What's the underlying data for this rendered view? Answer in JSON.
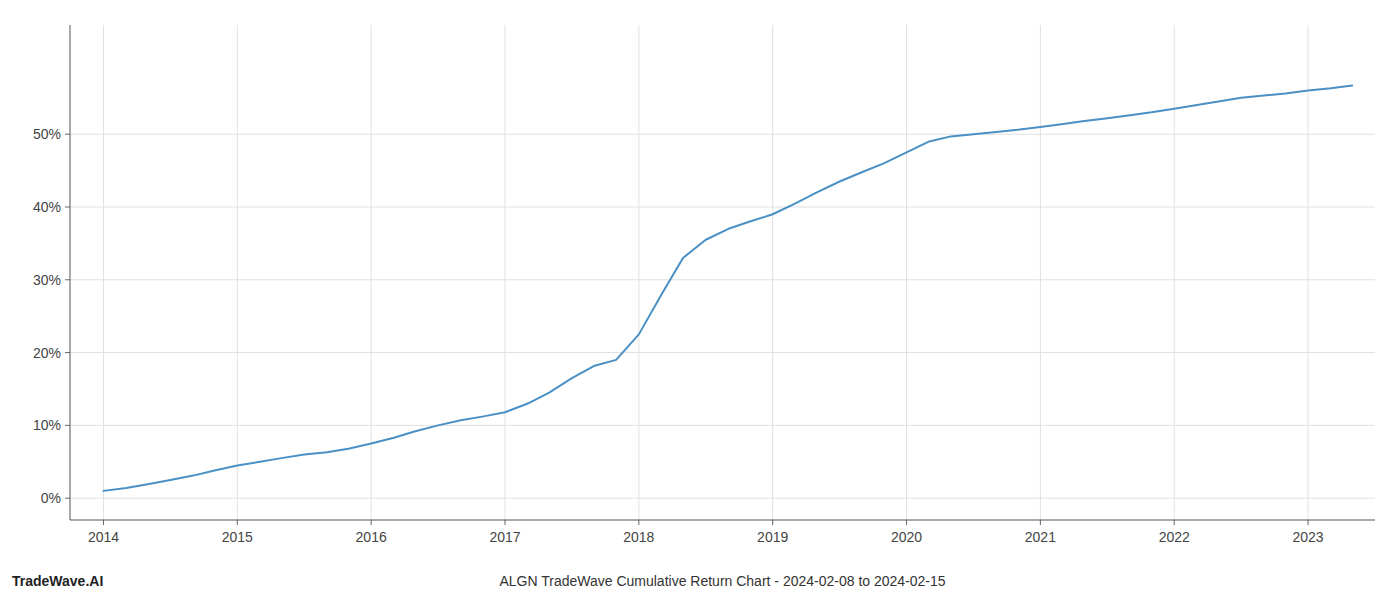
{
  "chart_data": {
    "type": "line",
    "title": "ALGN TradeWave Cumulative Return Chart - 2024-02-08 to 2024-02-15",
    "annotations": [
      "TradeWave.AI"
    ],
    "x": [
      2014.0,
      2014.17,
      2014.33,
      2014.5,
      2014.67,
      2014.83,
      2015.0,
      2015.17,
      2015.33,
      2015.5,
      2015.67,
      2015.83,
      2016.0,
      2016.17,
      2016.33,
      2016.5,
      2016.67,
      2016.83,
      2017.0,
      2017.17,
      2017.33,
      2017.5,
      2017.67,
      2017.83,
      2018.0,
      2018.17,
      2018.33,
      2018.5,
      2018.67,
      2018.83,
      2019.0,
      2019.17,
      2019.33,
      2019.5,
      2019.67,
      2019.83,
      2020.0,
      2020.17,
      2020.33,
      2020.5,
      2020.67,
      2020.83,
      2021.0,
      2021.17,
      2021.33,
      2021.5,
      2021.67,
      2021.83,
      2022.0,
      2022.17,
      2022.33,
      2022.5,
      2022.67,
      2022.83,
      2023.0,
      2023.17,
      2023.33
    ],
    "values": [
      1.0,
      1.4,
      1.9,
      2.5,
      3.1,
      3.8,
      4.5,
      5.0,
      5.5,
      6.0,
      6.3,
      6.8,
      7.5,
      8.3,
      9.2,
      10.0,
      10.7,
      11.2,
      11.8,
      13.0,
      14.5,
      16.5,
      18.2,
      19.0,
      22.5,
      28.0,
      33.0,
      35.5,
      37.0,
      38.0,
      39.0,
      40.5,
      42.0,
      43.5,
      44.8,
      46.0,
      47.5,
      49.0,
      49.7,
      50.0,
      50.3,
      50.6,
      51.0,
      51.4,
      51.8,
      52.2,
      52.6,
      53.0,
      53.5,
      54.0,
      54.5,
      55.0,
      55.3,
      55.6,
      56.0,
      56.3,
      56.7
    ],
    "color": "#4a90c4",
    "xlim": [
      2013.75,
      2023.5
    ],
    "ylim": [
      -3,
      65
    ],
    "xticks": [
      2014,
      2015,
      2016,
      2017,
      2018,
      2019,
      2020,
      2021,
      2022,
      2023
    ],
    "yticks": [
      {
        "value": 0,
        "label": "0%"
      },
      {
        "value": 10,
        "label": "10%"
      },
      {
        "value": 20,
        "label": "20%"
      },
      {
        "value": 30,
        "label": "30%"
      },
      {
        "value": 40,
        "label": "40%"
      },
      {
        "value": 50,
        "label": "50%"
      }
    ],
    "grid": true
  }
}
